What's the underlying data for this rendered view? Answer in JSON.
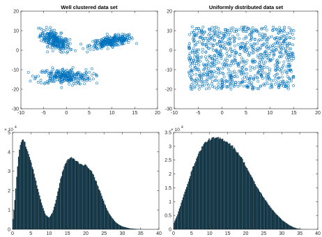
{
  "colors": {
    "marker": "#0072BD",
    "hist_bar": "#15323f",
    "hist_bar_alt": "#1f4e66",
    "axis": "#262626",
    "background": "#ffffff"
  },
  "chart_data": [
    {
      "id": "clustered",
      "type": "scatter",
      "title": "Well clustered  data set",
      "xlim": [
        -10,
        20
      ],
      "ylim": [
        -30,
        20
      ],
      "xticks": [
        -10,
        -5,
        0,
        5,
        10,
        15,
        20
      ],
      "yticks": [
        -30,
        -20,
        -10,
        0,
        10,
        20
      ],
      "xtick_labels": [
        "-10",
        "-5",
        "0",
        "5",
        "10",
        "15",
        "20"
      ],
      "ytick_labels": [
        "-30",
        "-20",
        "-10",
        "0",
        "10",
        "20"
      ],
      "marker": "open-circle",
      "grid": false,
      "clusters": [
        {
          "cx": -2.5,
          "cy": 5,
          "sx": 1.6,
          "sy": 2.8,
          "rho": -0.6,
          "n": 260,
          "x_range": [
            -7,
            2
          ],
          "y_range": [
            -2,
            13
          ]
        },
        {
          "cx": 10,
          "cy": 4.5,
          "sx": 2.4,
          "sy": 1.6,
          "rho": 0.6,
          "n": 260,
          "x_range": [
            2,
            15.5
          ],
          "y_range": [
            -1,
            10
          ]
        },
        {
          "cx": -0.5,
          "cy": -13.5,
          "sx": 3.0,
          "sy": 2.0,
          "rho": 0.0,
          "n": 260,
          "x_range": [
            -9,
            7
          ],
          "y_range": [
            -21,
            -7
          ]
        }
      ]
    },
    {
      "id": "uniform",
      "type": "scatter",
      "title": "Uniformly distributed data set",
      "xlim": [
        -10,
        20
      ],
      "ylim": [
        -30,
        20
      ],
      "xticks": [
        -10,
        -5,
        0,
        5,
        10,
        15,
        20
      ],
      "yticks": [
        -30,
        -20,
        -10,
        0,
        10,
        20
      ],
      "xtick_labels": [
        "-10",
        "-5",
        "0",
        "5",
        "10",
        "15",
        "20"
      ],
      "ytick_labels": [
        "-30",
        "-20",
        "-10",
        "0",
        "10",
        "20"
      ],
      "marker": "open-circle",
      "grid": false,
      "uniform": {
        "x_range": [
          -7,
          15
        ],
        "y_range": [
          -20,
          12
        ],
        "n": 900
      }
    },
    {
      "id": "hist_clustered",
      "type": "bar",
      "title": "",
      "xlim": [
        0,
        40
      ],
      "ylim": [
        0,
        50000
      ],
      "xticks": [
        0,
        5,
        10,
        15,
        20,
        25,
        30,
        35,
        40
      ],
      "yticks": [
        0,
        10000,
        20000,
        30000,
        40000,
        50000
      ],
      "xtick_labels": [
        "0",
        "5",
        "10",
        "15",
        "20",
        "25",
        "30",
        "35",
        "40"
      ],
      "ytick_labels": [
        "0",
        "1",
        "2",
        "3",
        "4",
        "5"
      ],
      "y_exponent_base": "× 10",
      "y_exponent_power": "4",
      "grid": false,
      "bin_width": 0.25,
      "profile_x": [
        0,
        0.5,
        1.0,
        1.5,
        2.0,
        2.5,
        3.0,
        3.5,
        4.0,
        5.0,
        6.0,
        7.0,
        8.0,
        9.0,
        10.0,
        11.0,
        12.0,
        13.0,
        14.0,
        15.0,
        16.0,
        17.0,
        18.0,
        19.0,
        20.0,
        21.0,
        22.0,
        23.0,
        24.0,
        25.0,
        26.0,
        27.0,
        28.0,
        29.0,
        30.0,
        31.0,
        32.0,
        34.0,
        36.0,
        40.0
      ],
      "profile_y": [
        3000,
        12000,
        24000,
        36000,
        43000,
        46500,
        46000,
        44000,
        41000,
        35000,
        28000,
        20000,
        13000,
        7500,
        6000,
        9000,
        16000,
        25000,
        32000,
        36000,
        37000,
        36000,
        34500,
        33500,
        33000,
        31500,
        28500,
        24000,
        19000,
        14000,
        9500,
        6500,
        4000,
        2500,
        1500,
        1000,
        500,
        200,
        50,
        0
      ]
    },
    {
      "id": "hist_uniform",
      "type": "bar",
      "title": "",
      "xlim": [
        0,
        40
      ],
      "ylim": [
        0,
        35000
      ],
      "xticks": [
        0,
        5,
        10,
        15,
        20,
        25,
        30,
        35,
        40
      ],
      "yticks": [
        0,
        5000,
        10000,
        15000,
        20000,
        25000,
        30000,
        35000
      ],
      "xtick_labels": [
        "0",
        "5",
        "10",
        "15",
        "20",
        "25",
        "30",
        "35",
        "40"
      ],
      "ytick_labels": [
        "0",
        "0.5",
        "1",
        "1.5",
        "2",
        "2.5",
        "3",
        "3.5"
      ],
      "y_exponent_base": "× 10",
      "y_exponent_power": "4",
      "grid": false,
      "bin_width": 0.25,
      "profile_x": [
        0,
        1,
        2,
        3,
        4,
        5,
        6,
        7,
        8,
        9,
        10,
        11,
        12,
        13,
        14,
        15,
        16,
        17,
        18,
        19,
        20,
        21,
        22,
        23,
        24,
        25,
        26,
        27,
        28,
        29,
        30,
        31,
        32,
        33,
        34,
        35,
        36,
        38,
        40
      ],
      "profile_y": [
        2000,
        5000,
        9000,
        13000,
        17000,
        21000,
        24500,
        27500,
        30000,
        31700,
        32500,
        32900,
        33000,
        32800,
        32300,
        31500,
        30500,
        29000,
        27500,
        25500,
        23000,
        20500,
        18000,
        15500,
        13500,
        11500,
        9500,
        7800,
        6200,
        4800,
        3500,
        2500,
        1600,
        900,
        400,
        150,
        50,
        10,
        0
      ]
    }
  ]
}
